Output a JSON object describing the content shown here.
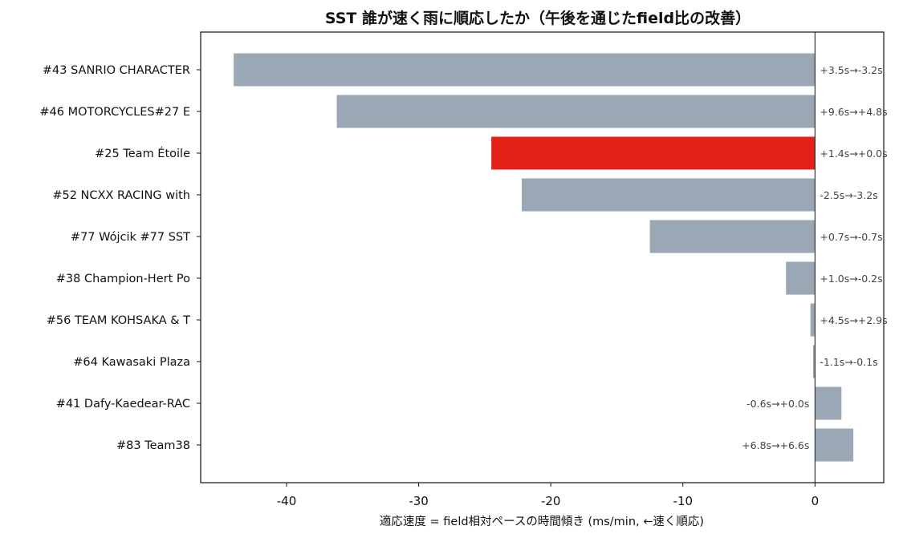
{
  "chart_data": {
    "type": "bar",
    "orientation": "horizontal",
    "title": "SST 誰が速く雨に順応したか（午後を通じたfield比の改善）",
    "xlabel": "適応速度 = field相対ペースの時間傾き (ms/min, ←速く順応)",
    "ylabel": "",
    "xlim": [
      -46.5,
      5.2
    ],
    "xticks": [
      -40,
      -30,
      -20,
      -10,
      0
    ],
    "grid": false,
    "highlight_color": "#e32119",
    "default_color": "#9aa8b5",
    "categories": [
      "#43 SANRIO CHARACTER",
      "#46 MOTORCYCLES#27 E",
      "#25 Team Étoile",
      "#52 NCXX RACING with",
      "#77 Wójcik  #77 SST",
      "#38 Champion-Hert Po",
      "#56 TEAM KOHSAKA & T",
      "#64 Kawasaki Plaza",
      "#41 Dafy-Kaedear-RAC",
      "#83 Team38"
    ],
    "values": [
      -44.0,
      -36.2,
      -24.5,
      -22.2,
      -12.5,
      -2.2,
      -0.35,
      -0.15,
      2.0,
      2.9
    ],
    "highlighted": [
      false,
      false,
      true,
      false,
      false,
      false,
      false,
      false,
      false,
      false
    ],
    "data_labels": [
      "+3.5s→-3.2s",
      "+9.6s→+4.8s",
      "+1.4s→+0.0s",
      "-2.5s→-3.2s",
      "+0.7s→-0.7s",
      "+1.0s→-0.2s",
      "+4.5s→+2.9s",
      "-1.1s→-0.1s",
      "-0.6s→+0.0s",
      "+6.8s→+6.6s"
    ]
  }
}
